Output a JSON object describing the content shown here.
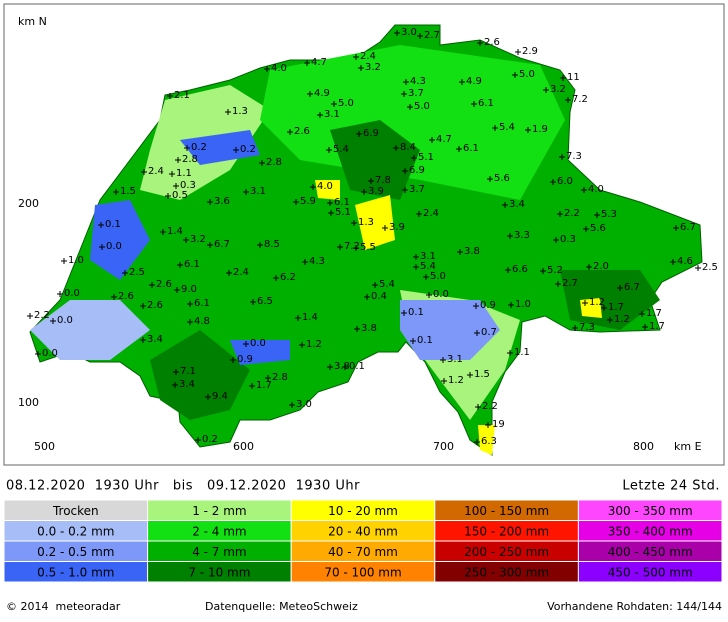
{
  "map": {
    "axis_labels": {
      "north": "km N",
      "y200": "200",
      "y100": "100",
      "x500": "500",
      "x600": "600",
      "x700": "700",
      "x800": "800",
      "east": "km E"
    },
    "stations": [
      "3.0",
      "2.7",
      "2.6",
      "2.9",
      "2.4",
      "4.7",
      "3.2",
      "4.0",
      "11",
      "4.3",
      "4.9",
      "5.0",
      "2.1",
      "4.9",
      "3.7",
      "3.2",
      "7.2",
      "5.0",
      "5.0",
      "6.1",
      "1.3",
      "3.1",
      "5.4",
      "1.9",
      "2.6",
      "6.9",
      "0.2",
      "0.2",
      "8.4",
      "4.7",
      "6.1",
      "5.4",
      "2.8",
      "5.1",
      "2.8",
      "7.3",
      "2.4",
      "1.1",
      "6.9",
      "0.3",
      "4.0",
      "7.8",
      "5.6",
      "6.0",
      "4.0",
      "1.5",
      "0.5",
      "3.1",
      "3.9",
      "3.7",
      "3.6",
      "5.9",
      "6.1",
      "3.4",
      "5.1",
      "2.4",
      "5.3",
      "0.1",
      "1.3",
      "2.2",
      "3.9",
      "5.6",
      "6.7",
      "1.4",
      "3.3",
      "0.3",
      "0.0",
      "3.2",
      "6.7",
      "8.5",
      "7.2",
      "5.5",
      "3.8",
      "3.1",
      "1.0",
      "5.4",
      "6.1",
      "5.0",
      "4.6",
      "2.5",
      "2.5",
      "2.4",
      "6.2",
      "4.3",
      "6.6",
      "5.2",
      "2.0",
      "0.0",
      "2.6",
      "5.4",
      "2.7",
      "2.6",
      "9.0",
      "6.7",
      "0.4",
      "0.0",
      "2.6",
      "6.1",
      "6.5",
      "0.9",
      "1.0",
      "1.2",
      "1.7",
      "2.2",
      "0.0",
      "0.1",
      "1.7",
      "4.8",
      "1.4",
      "1.2",
      "7.3",
      "1.7",
      "3.8",
      "0.7",
      "3.4",
      "0.1",
      "1.2",
      "0.0",
      "1.1",
      "0.0",
      "0.9",
      "3.1",
      "3.8",
      "0.1",
      "1.5",
      "7.1",
      "2.8",
      "3.4",
      "1.2",
      "1.7",
      "9.4",
      "3.0",
      "2.2",
      "19",
      "0.2",
      "6.3"
    ]
  },
  "header": {
    "period": "08.12.2020  1930 Uhr   bis   09.12.2020  1930 Uhr",
    "span": "Letzte 24 Std."
  },
  "legend": [
    {
      "label": "Trocken",
      "color": "#d8d8d8"
    },
    {
      "label": "0.0 - 0.2 mm",
      "color": "#a7bdf7"
    },
    {
      "label": "0.2 - 0.5 mm",
      "color": "#7d98f8"
    },
    {
      "label": "0.5 - 1.0 mm",
      "color": "#3a64f5"
    },
    {
      "label": "1 - 2 mm",
      "color": "#a8f47c"
    },
    {
      "label": "2 - 4 mm",
      "color": "#13e013"
    },
    {
      "label": "4 - 7 mm",
      "color": "#00b000"
    },
    {
      "label": "7 - 10 mm",
      "color": "#008000"
    },
    {
      "label": "10 - 20 mm",
      "color": "#ffff00"
    },
    {
      "label": "20 - 40 mm",
      "color": "#ffd200"
    },
    {
      "label": "40 - 70 mm",
      "color": "#ffaa00"
    },
    {
      "label": "70 - 100 mm",
      "color": "#ff8200"
    },
    {
      "label": "100 - 150 mm",
      "color": "#d26800"
    },
    {
      "label": "150 - 200 mm",
      "color": "#ff1400"
    },
    {
      "label": "200 - 250 mm",
      "color": "#c80000"
    },
    {
      "label": "250 - 300 mm",
      "color": "#820000"
    },
    {
      "label": "300 - 350 mm",
      "color": "#ff46ff"
    },
    {
      "label": "350 - 400 mm",
      "color": "#e600e6"
    },
    {
      "label": "400 - 450 mm",
      "color": "#aa00aa"
    },
    {
      "label": "450 - 500 mm",
      "color": "#8c00ff"
    }
  ],
  "footer": {
    "copyright": "© 2014  meteoradar",
    "source": "Datenquelle: MeteoSchweiz",
    "raw": "Vorhandene Rohdaten: 144/144"
  }
}
